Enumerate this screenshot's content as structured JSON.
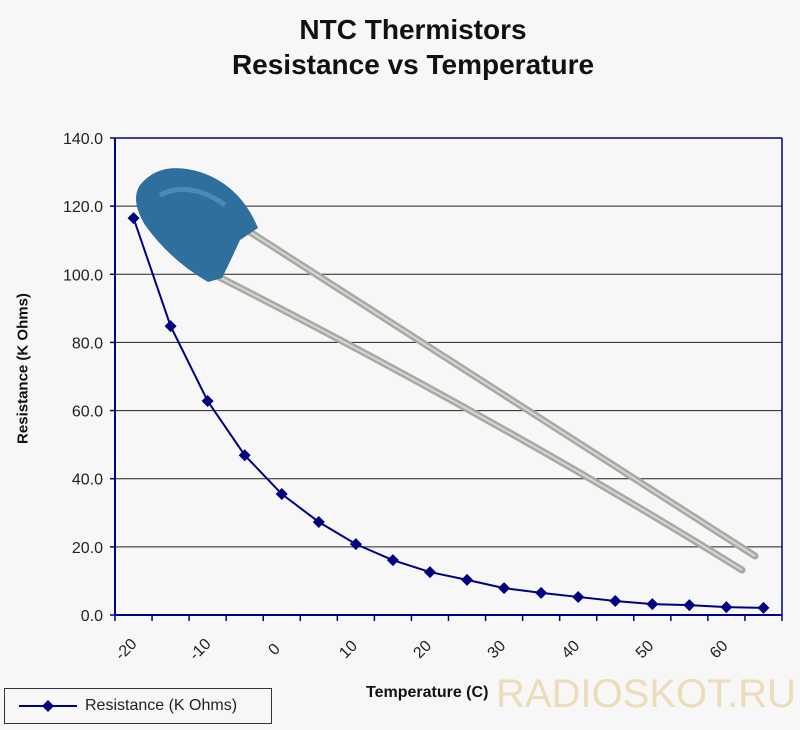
{
  "chart_data": {
    "type": "line",
    "title": "NTC Thermistors",
    "subtitle": "Resistance vs Temperature",
    "xlabel": "Temperature (C)",
    "ylabel": "Resistance (K Ohms)",
    "x": [
      -20,
      -15,
      -10,
      -5,
      0,
      5,
      10,
      15,
      20,
      25,
      30,
      35,
      40,
      45,
      50,
      55,
      60,
      65
    ],
    "x_tick_labels": [
      "-20",
      "-10",
      "0",
      "10",
      "20",
      "30",
      "40",
      "50",
      "60"
    ],
    "y_tick_labels": [
      "0.0",
      "20.0",
      "40.0",
      "60.0",
      "80.0",
      "100.0",
      "120.0",
      "140.0"
    ],
    "ylim": [
      0,
      140
    ],
    "grid": true,
    "legend_position": "bottom-left",
    "series": [
      {
        "name": "Resistance  (K Ohms)",
        "color": "#000080",
        "marker": "diamond",
        "values": [
          116.5,
          84.8,
          62.8,
          46.9,
          35.5,
          27.3,
          20.8,
          16.1,
          12.6,
          10.3,
          7.9,
          6.5,
          5.3,
          4.1,
          3.2,
          2.9,
          2.3,
          2.1
        ]
      }
    ]
  },
  "watermark": "RADIOSKOT.RU"
}
